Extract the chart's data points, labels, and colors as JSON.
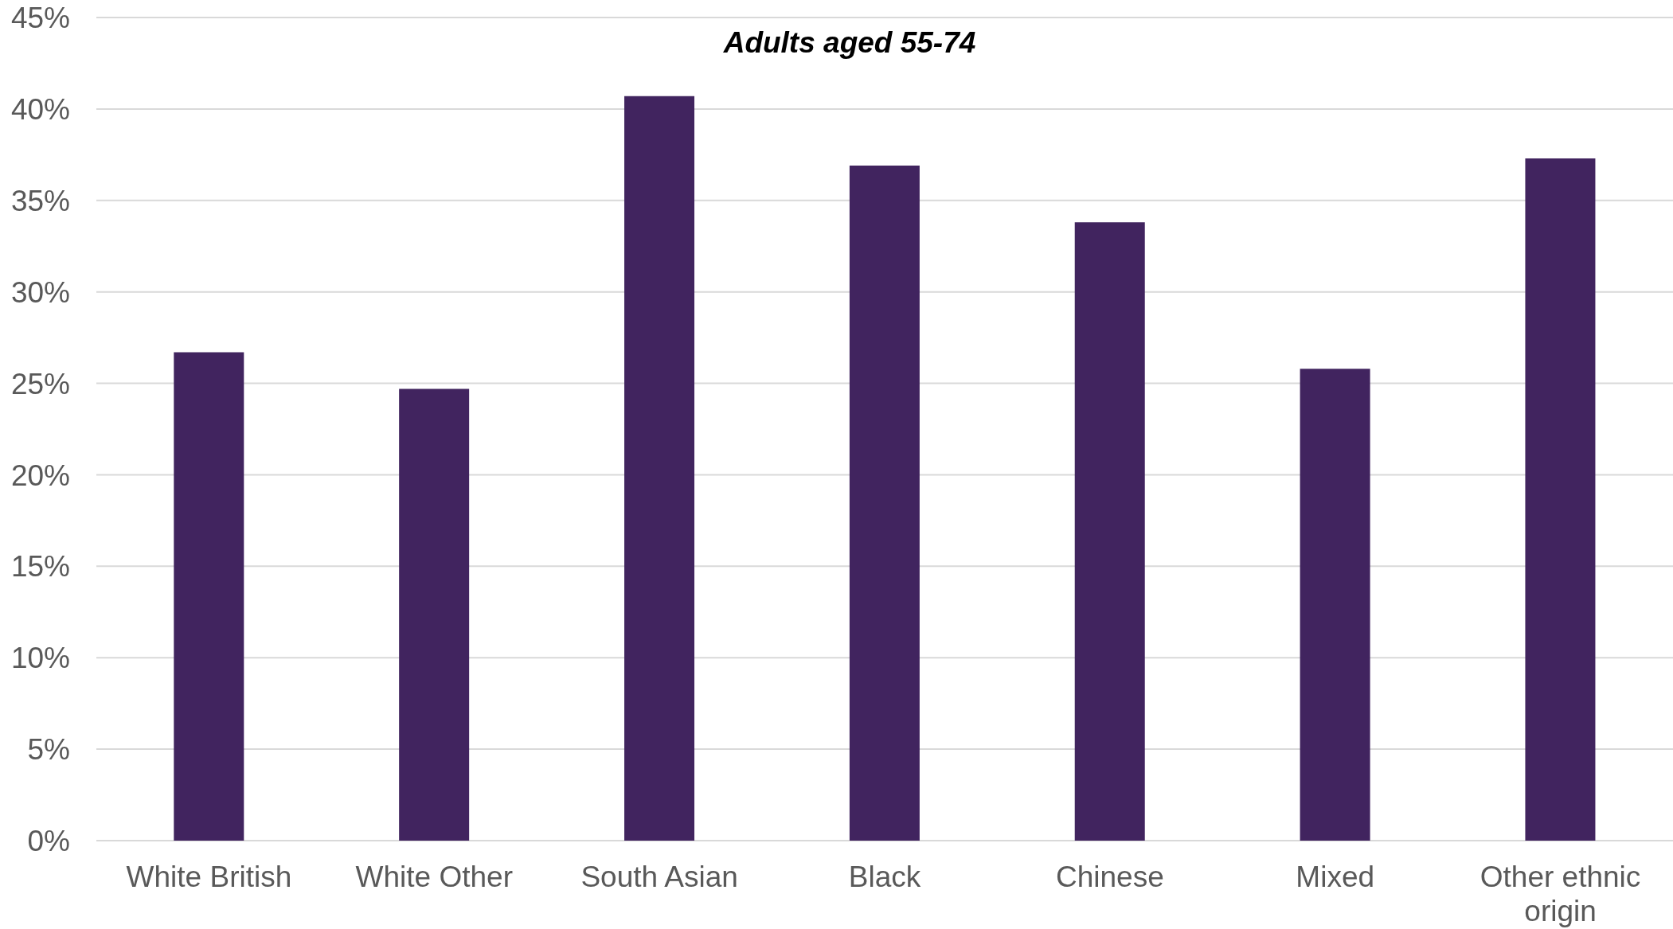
{
  "chart_data": {
    "type": "bar",
    "title": "Adults aged 55-74",
    "categories": [
      "White British",
      "White Other",
      "South Asian",
      "Black",
      "Chinese",
      "Mixed",
      "Other ethnic origin"
    ],
    "values": [
      26.7,
      24.7,
      40.7,
      36.9,
      33.8,
      25.8,
      37.3
    ],
    "color": "#41245f",
    "ylim": [
      0,
      45
    ],
    "yticks": [
      {
        "value": 0,
        "label": "0%"
      },
      {
        "value": 5,
        "label": "5%"
      },
      {
        "value": 10,
        "label": "10%"
      },
      {
        "value": 15,
        "label": "15%"
      },
      {
        "value": 20,
        "label": "20%"
      },
      {
        "value": 25,
        "label": "25%"
      },
      {
        "value": 30,
        "label": "30%"
      },
      {
        "value": 35,
        "label": "35%"
      },
      {
        "value": 40,
        "label": "40%"
      },
      {
        "value": 45,
        "label": "45%"
      }
    ],
    "grid": "y"
  }
}
